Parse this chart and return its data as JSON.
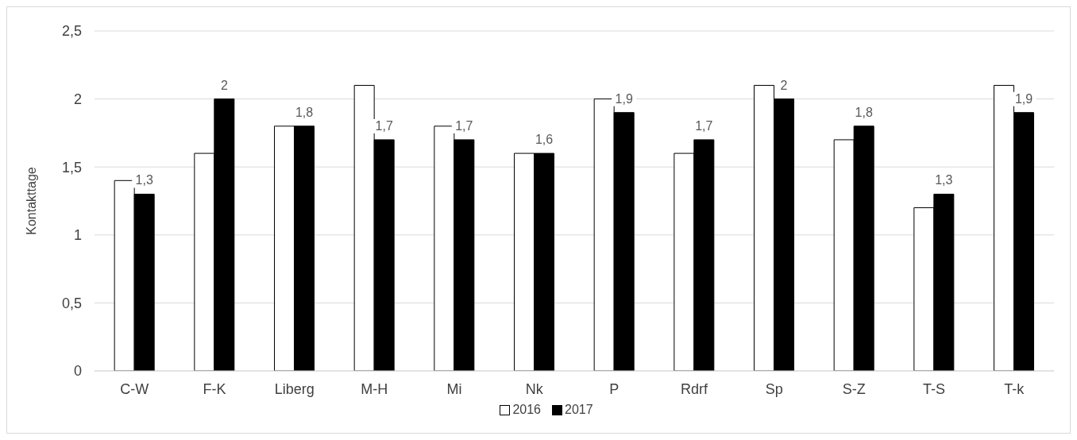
{
  "chart_data": {
    "type": "bar",
    "ylabel": "Kontakttage",
    "categories": [
      "C-W",
      "F-K",
      "Liberg",
      "M-H",
      "Mi",
      "Nk",
      "P",
      "Rdrf",
      "Sp",
      "S-Z",
      "T-S",
      "T-k"
    ],
    "series": [
      {
        "name": "2016",
        "color": "#ffffff",
        "values": [
          1.4,
          1.6,
          1.8,
          2.1,
          1.8,
          1.6,
          2.0,
          1.6,
          2.1,
          1.7,
          1.2,
          2.1
        ]
      },
      {
        "name": "2017",
        "color": "#000000",
        "values": [
          1.3,
          2,
          1.8,
          1.7,
          1.7,
          1.6,
          1.9,
          1.7,
          2,
          1.8,
          1.3,
          1.9
        ],
        "value_labels": [
          "1,3",
          "2",
          "1,8",
          "1,7",
          "1,7",
          "1,6",
          "1,9",
          "1,7",
          "2",
          "1,8",
          "1,3",
          "1,9"
        ]
      }
    ],
    "ylim": [
      0,
      2.5
    ],
    "yticks": [
      0,
      {
        "value": 0.5,
        "label": "0,5"
      },
      1,
      {
        "value": 1.5,
        "label": "1,5"
      },
      2,
      {
        "value": 2.5,
        "label": "2,5"
      }
    ],
    "grid": "y",
    "legend": "bottom"
  }
}
